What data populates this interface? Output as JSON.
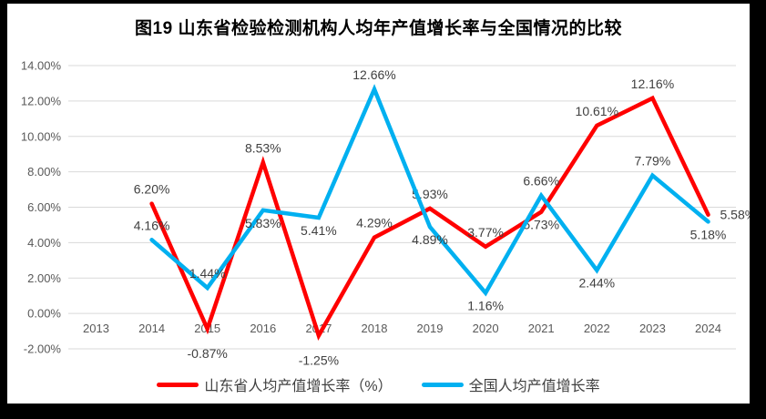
{
  "window": {
    "background": "#000000",
    "panel_background": "#ffffff"
  },
  "chart_data": {
    "type": "line",
    "title": "图19  山东省检验检测机构人均年产值增长率与全国情况的比较",
    "categories": [
      "2013",
      "2014",
      "2015",
      "2016",
      "2017",
      "2018",
      "2019",
      "2020",
      "2021",
      "2022",
      "2023",
      "2024"
    ],
    "series": [
      {
        "name": "山东省人均产值增长率（%）",
        "color": "#FF0000",
        "values": [
          null,
          6.2,
          -0.87,
          8.53,
          -1.25,
          4.29,
          5.93,
          3.77,
          5.73,
          10.61,
          12.16,
          5.58
        ],
        "labels": [
          null,
          "6.20%",
          "-0.87%",
          "8.53%",
          "-1.25%",
          "4.29%",
          "5.93%",
          "3.77%",
          "5.73%",
          "10.61%",
          "12.16%",
          "5.58%"
        ],
        "label_pos": [
          null,
          "above",
          "below-axis",
          "above",
          "below-axis",
          "above",
          "above",
          "above",
          "below",
          "above",
          "above",
          "right"
        ]
      },
      {
        "name": "全国人均产值增长率",
        "color": "#00B0F0",
        "values": [
          null,
          4.16,
          1.44,
          5.83,
          5.41,
          12.66,
          4.89,
          1.16,
          6.66,
          2.44,
          7.79,
          5.18
        ],
        "labels": [
          null,
          "4.16%",
          "1.44%",
          "5.83%",
          "5.41%",
          "12.66%",
          "4.89%",
          "1.16%",
          "6.66%",
          "2.44%",
          "7.79%",
          "5.18%"
        ],
        "label_pos": [
          null,
          "above",
          "above",
          "below",
          "below",
          "above",
          "below",
          "below",
          "above",
          "below",
          "above",
          "below"
        ]
      }
    ],
    "y_axis": {
      "ticks": [
        "14.00%",
        "12.00%",
        "10.00%",
        "8.00%",
        "6.00%",
        "4.00%",
        "2.00%",
        "0.00%",
        "-2.00%"
      ],
      "min": -2,
      "max": 14,
      "step": 2
    },
    "grid": true,
    "legend_position": "bottom",
    "colors": {
      "grid": "#d9d9d9",
      "axis_labels": "#595959",
      "data_labels": "#404040",
      "title": "#000000",
      "legend_text": "#404040"
    }
  }
}
